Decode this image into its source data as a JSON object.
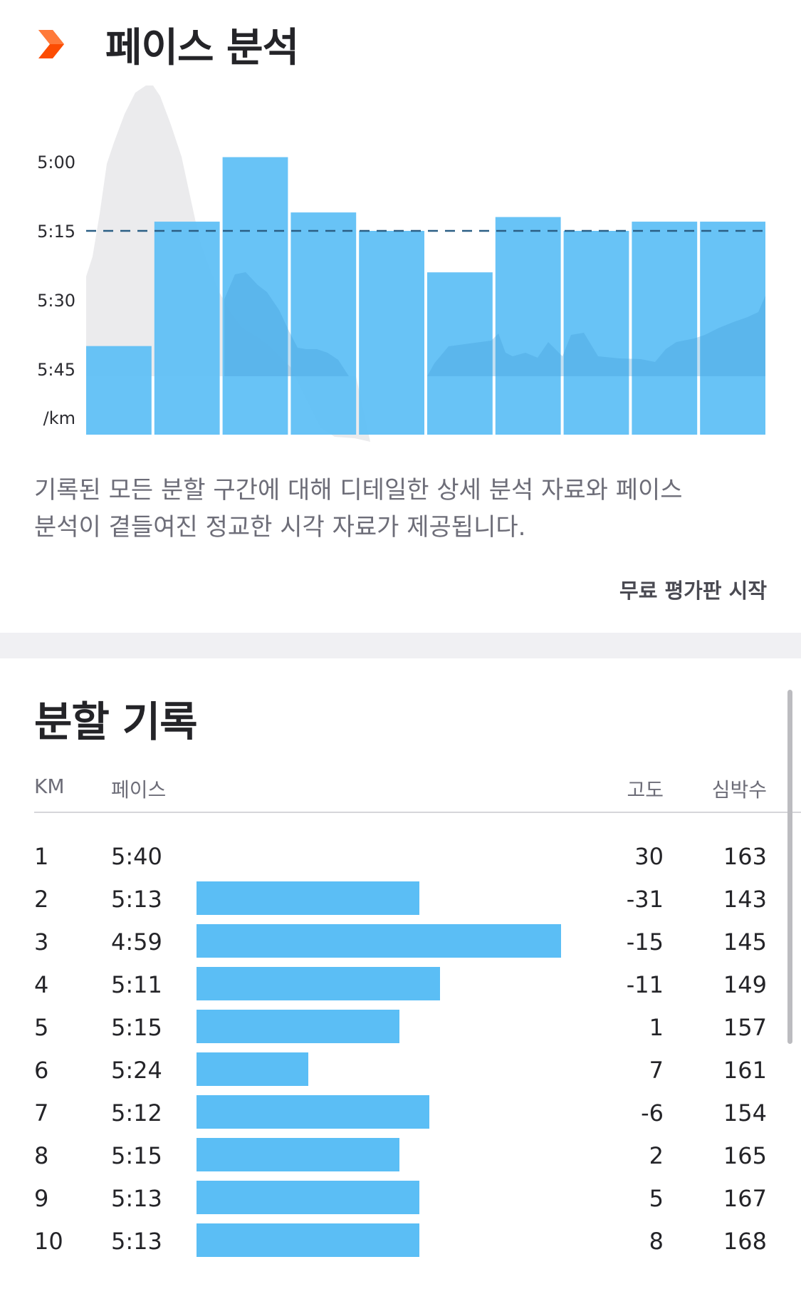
{
  "pace_analysis": {
    "title": "페이스 분석",
    "icon": "chevron-right-icon",
    "accent_color": "#fc4c02",
    "description_line1": "기록된 모든 분할 구간에 대해 디테일한 상세 분석 자료와 페이스",
    "description_line2": "분석이 곁들여진 정교한 시각 자료가 제공됩니다.",
    "trial_link": "무료 평가판 시작"
  },
  "chart_data": {
    "type": "bar",
    "categories": [
      "1",
      "2",
      "3",
      "4",
      "5",
      "6",
      "7",
      "8",
      "9",
      "10"
    ],
    "values": [
      "5:40",
      "5:13",
      "4:59",
      "5:11",
      "5:15",
      "5:24",
      "5:12",
      "5:15",
      "5:13",
      "5:13"
    ],
    "y_ticks": [
      "5:00",
      "5:15",
      "5:30",
      "5:45",
      "/km"
    ],
    "average_line": "5:15",
    "bar_color": "#5bbef5",
    "background_area": "elevation-profile",
    "grid": false
  },
  "splits": {
    "title": "분할 기록",
    "headers": {
      "km": "KM",
      "pace": "페이스",
      "elevation": "고도",
      "heart_rate": "심박수"
    },
    "rows": [
      {
        "km": "1",
        "pace": "5:40",
        "elevation": "30",
        "heart_rate": "163"
      },
      {
        "km": "2",
        "pace": "5:13",
        "elevation": "-31",
        "heart_rate": "143"
      },
      {
        "km": "3",
        "pace": "4:59",
        "elevation": "-15",
        "heart_rate": "145"
      },
      {
        "km": "4",
        "pace": "5:11",
        "elevation": "-11",
        "heart_rate": "149"
      },
      {
        "km": "5",
        "pace": "5:15",
        "elevation": "1",
        "heart_rate": "157"
      },
      {
        "km": "6",
        "pace": "5:24",
        "elevation": "7",
        "heart_rate": "161"
      },
      {
        "km": "7",
        "pace": "5:12",
        "elevation": "-6",
        "heart_rate": "154"
      },
      {
        "km": "8",
        "pace": "5:15",
        "elevation": "2",
        "heart_rate": "165"
      },
      {
        "km": "9",
        "pace": "5:13",
        "elevation": "5",
        "heart_rate": "167"
      },
      {
        "km": "10",
        "pace": "5:13",
        "elevation": "8",
        "heart_rate": "168"
      }
    ]
  }
}
